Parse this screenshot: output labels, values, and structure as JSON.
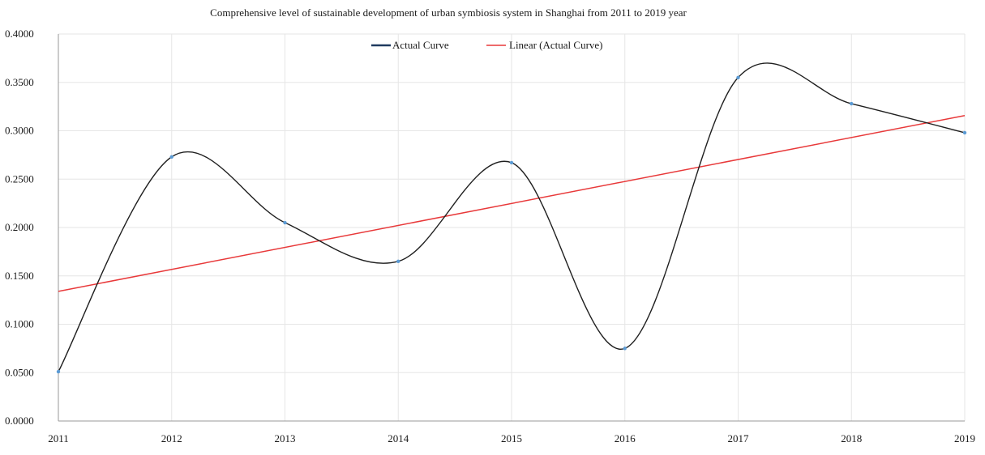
{
  "chart_data": {
    "type": "line",
    "title": "Comprehensive level of sustainable development of urban symbiosis system in Shanghai from 2011 to 2019 year",
    "xlabel": "",
    "ylabel": "",
    "categories": [
      "2011",
      "2012",
      "2013",
      "2014",
      "2015",
      "2016",
      "2017",
      "2018",
      "2019"
    ],
    "ylim": [
      0,
      0.4
    ],
    "yticks": [
      "0.0000",
      "0.0500",
      "0.1000",
      "0.1500",
      "0.2000",
      "0.2500",
      "0.3000",
      "0.3500",
      "0.4000"
    ],
    "grid": true,
    "legend_position": "top-center",
    "series": [
      {
        "name": "Actual Curve",
        "color": "#1f1f1f",
        "marker_color": "#5b9bd5",
        "smooth": true,
        "values": [
          0.051,
          0.273,
          0.205,
          0.165,
          0.267,
          0.075,
          0.355,
          0.328,
          0.298
        ]
      },
      {
        "name": "Linear (Actual Curve)",
        "color": "#e8393a",
        "type": "trendline",
        "values": [
          0.134,
          0.1567,
          0.1794,
          0.2021,
          0.2248,
          0.2475,
          0.2703,
          0.293,
          0.3157
        ]
      }
    ]
  },
  "legend": {
    "actual_label": "Actual Curve",
    "linear_label": "Linear (Actual Curve)"
  }
}
